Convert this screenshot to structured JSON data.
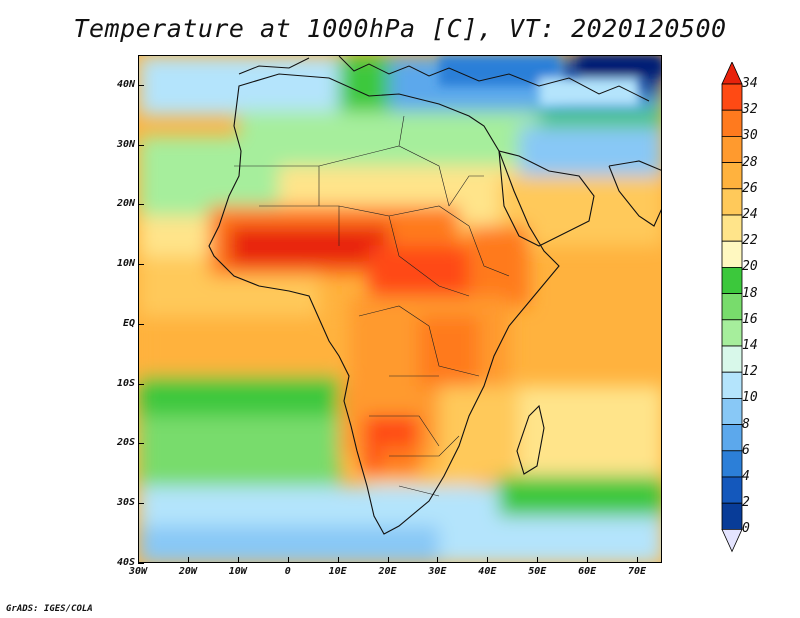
{
  "title": "Temperature at 1000hPa [C], VT: 2020120500",
  "credit": "GrADS: IGES/COLA",
  "map": {
    "projection": "lat-lon",
    "lon_range": [
      -30,
      75
    ],
    "lat_range": [
      -40,
      45
    ],
    "lat_labels": [
      "40N",
      "30N",
      "20N",
      "10N",
      "EQ",
      "10S",
      "20S",
      "30S",
      "40S"
    ],
    "lat_values": [
      40,
      30,
      20,
      10,
      0,
      -10,
      -20,
      -30,
      -40
    ],
    "lon_labels": [
      "30W",
      "20W",
      "10W",
      "0",
      "10E",
      "20E",
      "30E",
      "40E",
      "50E",
      "60E",
      "70E"
    ],
    "lon_values": [
      -30,
      -20,
      -10,
      0,
      10,
      20,
      30,
      40,
      50,
      60,
      70
    ]
  },
  "colorbar": {
    "labels": [
      "34",
      "32",
      "30",
      "28",
      "26",
      "24",
      "22",
      "20",
      "18",
      "16",
      "14",
      "12",
      "10",
      "8",
      "6",
      "4",
      "2",
      "0"
    ],
    "colors": [
      "#e8220c",
      "#ff4a14",
      "#ff7a1e",
      "#ff9a2e",
      "#ffb23e",
      "#ffc95a",
      "#ffe48a",
      "#fff8c0",
      "#3cc83c",
      "#78dc6c",
      "#a6ee9c",
      "#d8f8ea",
      "#b4e4fc",
      "#88c8f6",
      "#5ca8ec",
      "#2c7fd8",
      "#1458bc",
      "#083c98",
      "#061c74"
    ]
  }
}
